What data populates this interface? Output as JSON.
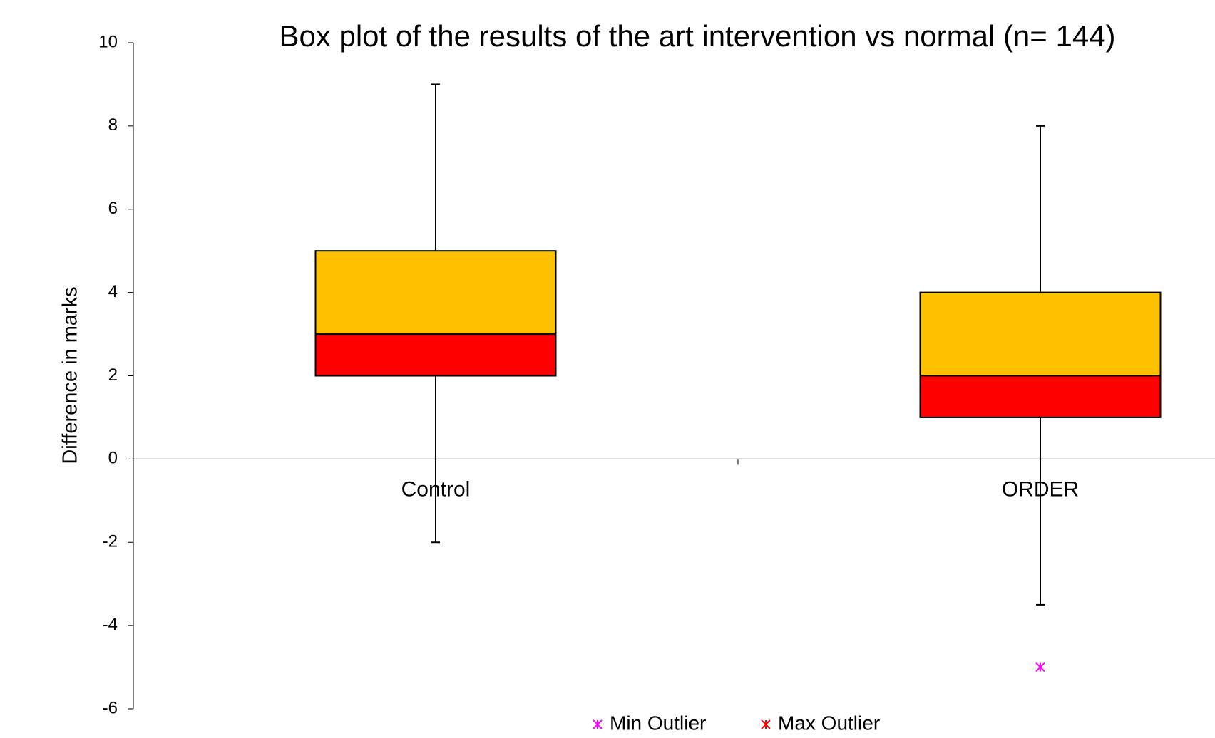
{
  "chart_data": {
    "type": "box",
    "title": "Box plot of the results of the art intervention vs normal (n= 144)",
    "y_label": "Difference in marks",
    "categories": [
      "Control",
      "ORDER"
    ],
    "min": [
      -2,
      -3.5
    ],
    "q1": [
      2,
      1
    ],
    "median": [
      3,
      2
    ],
    "q3": [
      5,
      4
    ],
    "max": [
      9,
      8
    ],
    "min_outliers": [
      [],
      [
        -5
      ]
    ],
    "max_outliers": [
      [],
      []
    ],
    "lower_box_color": "#ff0000",
    "upper_box_color": "#ffc000",
    "legend": [
      {
        "name": "Min Outlier",
        "color": "#ff00ff"
      },
      {
        "name": "Max Outlier",
        "color": "#ff0000"
      }
    ],
    "ylim": [
      -6,
      10
    ],
    "yticks": [
      -6,
      -4,
      -2,
      0,
      2,
      4,
      6,
      8,
      10
    ],
    "grid": false
  }
}
